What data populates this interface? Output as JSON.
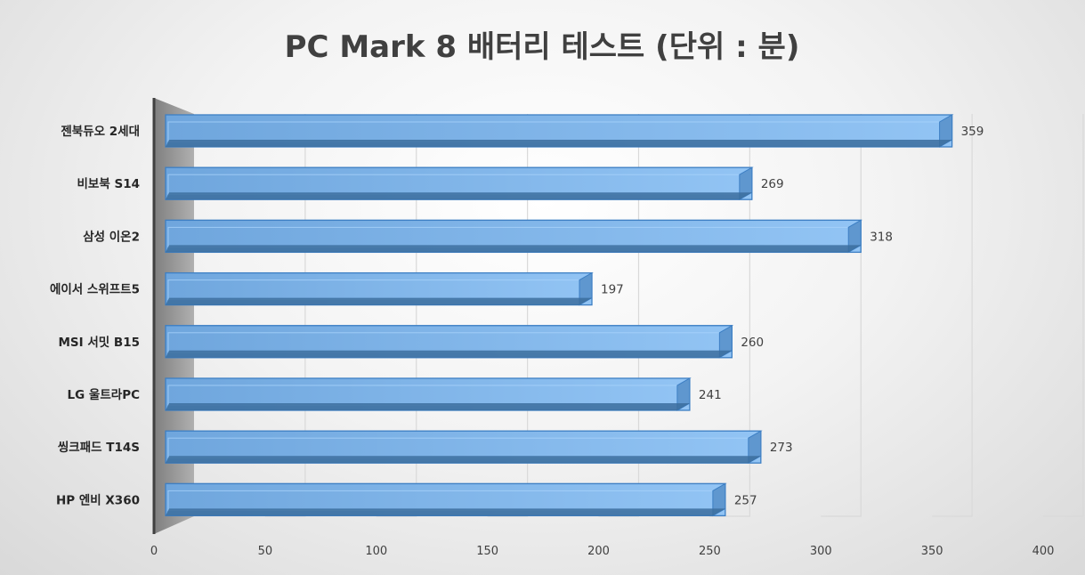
{
  "chart_data": {
    "type": "bar",
    "orientation": "horizontal",
    "title": "PC Mark 8 배터리 테스트 (단위 : 분)",
    "categories": [
      "젠북듀오 2세대",
      "비보북  S14",
      "삼성 이온2",
      "에이서 스위프트5",
      "MSI 서밋 B15",
      "LG 울트라PC",
      "씽크패드 T14S",
      "HP 엔비 X360"
    ],
    "values": [
      359,
      269,
      318,
      197,
      260,
      241,
      273,
      257
    ],
    "xlim": [
      0,
      400
    ],
    "xticks": [
      "0",
      "50",
      "100",
      "150",
      "200",
      "250",
      "300",
      "350",
      "400"
    ],
    "xlabel": "",
    "ylabel": "",
    "grid": true,
    "legend": "none",
    "bar_color": "#7fb6ec",
    "bar_edge_color": "#3d7fc4"
  }
}
